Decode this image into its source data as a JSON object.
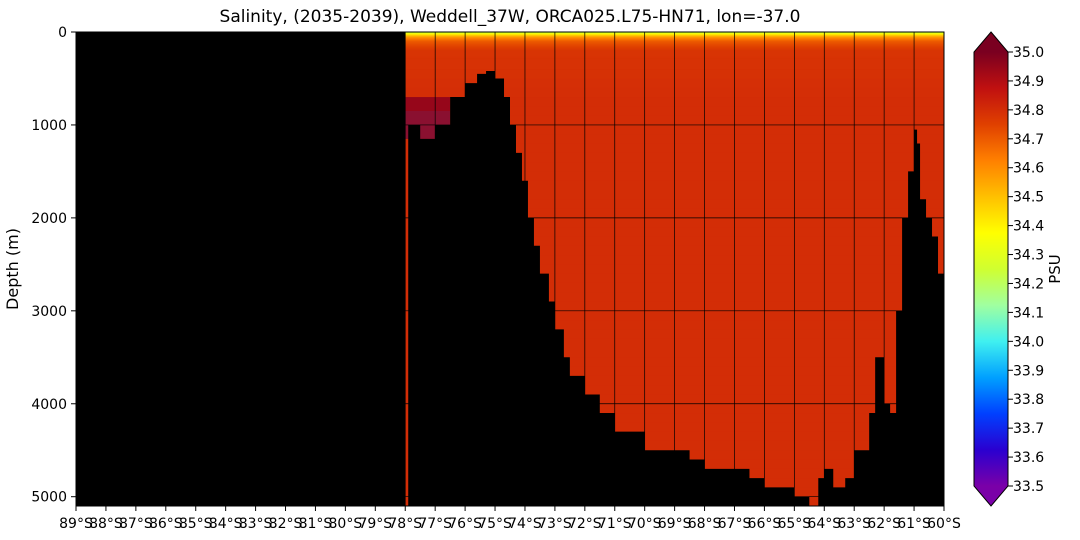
{
  "chart_data": {
    "type": "heatmap",
    "title": "Salinity, (2035-2039), Weddell_37W, ORCA025.L75-HN71, lon=-37.0",
    "ylabel": "Depth (m)",
    "colorbar_label": "PSU",
    "x_tick_labels": [
      "89°S",
      "88°S",
      "87°S",
      "86°S",
      "85°S",
      "84°S",
      "83°S",
      "82°S",
      "81°S",
      "80°S",
      "79°S",
      "78°S",
      "77°S",
      "76°S",
      "75°S",
      "74°S",
      "73°S",
      "72°S",
      "71°S",
      "70°S",
      "69°S",
      "68°S",
      "67°S",
      "66°S",
      "65°S",
      "64°S",
      "63°S",
      "62°S",
      "61°S",
      "60°S"
    ],
    "xlim": [
      -89,
      -60
    ],
    "y_ticks": [
      0,
      1000,
      2000,
      3000,
      4000,
      5000
    ],
    "ylim": [
      5100,
      0
    ],
    "y_inverted": true,
    "grid": true,
    "colorbar": {
      "vmin": 33.5,
      "vmax": 35.0,
      "ticks": [
        "35.0",
        "34.9",
        "34.8",
        "34.7",
        "34.6",
        "34.5",
        "34.4",
        "34.3",
        "34.2",
        "34.1",
        "34.0",
        "33.9",
        "33.8",
        "33.7",
        "33.6",
        "33.5"
      ],
      "extend": "both",
      "colormap": [
        "#7a00a8",
        "#2a00d0",
        "#0040ff",
        "#00a0ff",
        "#40f0f0",
        "#a0ffa0",
        "#d0ff30",
        "#ffff00",
        "#ffc000",
        "#ff8000",
        "#e04000",
        "#c01010",
        "#7a0020"
      ]
    },
    "ice_shelf": {
      "lat_start": -78.0,
      "lat_end": -76.5,
      "depth_bottom": 700
    },
    "salinity_profile": {
      "surface_depths": [
        0,
        30,
        60,
        100,
        200,
        700
      ],
      "surface_values": [
        34.2,
        34.45,
        34.6,
        34.7,
        34.78,
        34.8
      ],
      "deep_value": 34.8,
      "shelf_water_value": 34.95
    },
    "bathymetry": {
      "lat": [
        -89.0,
        -78.0,
        -77.9,
        -77.5,
        -77.0,
        -76.5,
        -76.0,
        -75.6,
        -75.3,
        -75.0,
        -74.7,
        -74.5,
        -74.3,
        -74.1,
        -73.9,
        -73.7,
        -73.5,
        -73.2,
        -73.0,
        -72.7,
        -72.5,
        -72.0,
        -71.5,
        -71.0,
        -70.5,
        -70.0,
        -69.5,
        -69.0,
        -68.5,
        -68.0,
        -67.5,
        -67.0,
        -66.5,
        -66.0,
        -65.5,
        -65.0,
        -64.5,
        -64.2,
        -64.0,
        -63.7,
        -63.5,
        -63.3,
        -63.0,
        -62.5,
        -62.3,
        -62.0,
        -61.8,
        -61.6,
        -61.4,
        -61.2,
        -61.0,
        -60.9,
        -60.8,
        -60.6,
        -60.4,
        -60.2,
        -60.0
      ],
      "depth": [
        5100,
        5100,
        1000,
        1150,
        1000,
        700,
        550,
        450,
        420,
        500,
        700,
        1000,
        1300,
        1600,
        2000,
        2300,
        2600,
        2900,
        3200,
        3500,
        3700,
        3900,
        4100,
        4300,
        4300,
        4500,
        4500,
        4500,
        4600,
        4700,
        4700,
        4700,
        4800,
        4900,
        4900,
        5000,
        5100,
        4800,
        4700,
        4900,
        4900,
        4800,
        4500,
        4100,
        3500,
        4000,
        4100,
        3000,
        2000,
        1500,
        1050,
        1200,
        1800,
        2000,
        2200,
        2600,
        3000
      ]
    }
  }
}
